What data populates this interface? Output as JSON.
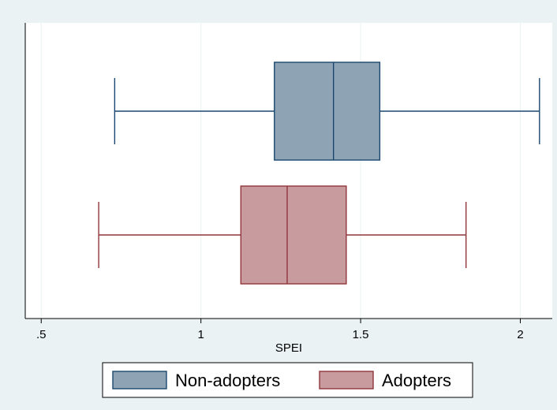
{
  "chart_data": {
    "type": "boxplot",
    "orientation": "horizontal",
    "xlabel": "SPEI",
    "xlim": [
      0.45,
      2.1
    ],
    "x_ticks": [
      {
        "value": 0.5,
        "label": ".5"
      },
      {
        "value": 1,
        "label": "1"
      },
      {
        "value": 1.5,
        "label": "1.5"
      },
      {
        "value": 2,
        "label": "2"
      }
    ],
    "grid": true,
    "legend_position": "bottom",
    "series": [
      {
        "name": "Non-adopters",
        "color": "#8ea4b5",
        "edge_color": "#1a476f",
        "min": 0.73,
        "q1": 1.23,
        "median": 1.415,
        "q3": 1.56,
        "max": 2.06
      },
      {
        "name": "Adopters",
        "color": "#c89b9e",
        "edge_color": "#90353b",
        "min": 0.68,
        "q1": 1.125,
        "median": 1.27,
        "q3": 1.455,
        "max": 1.83
      }
    ]
  }
}
